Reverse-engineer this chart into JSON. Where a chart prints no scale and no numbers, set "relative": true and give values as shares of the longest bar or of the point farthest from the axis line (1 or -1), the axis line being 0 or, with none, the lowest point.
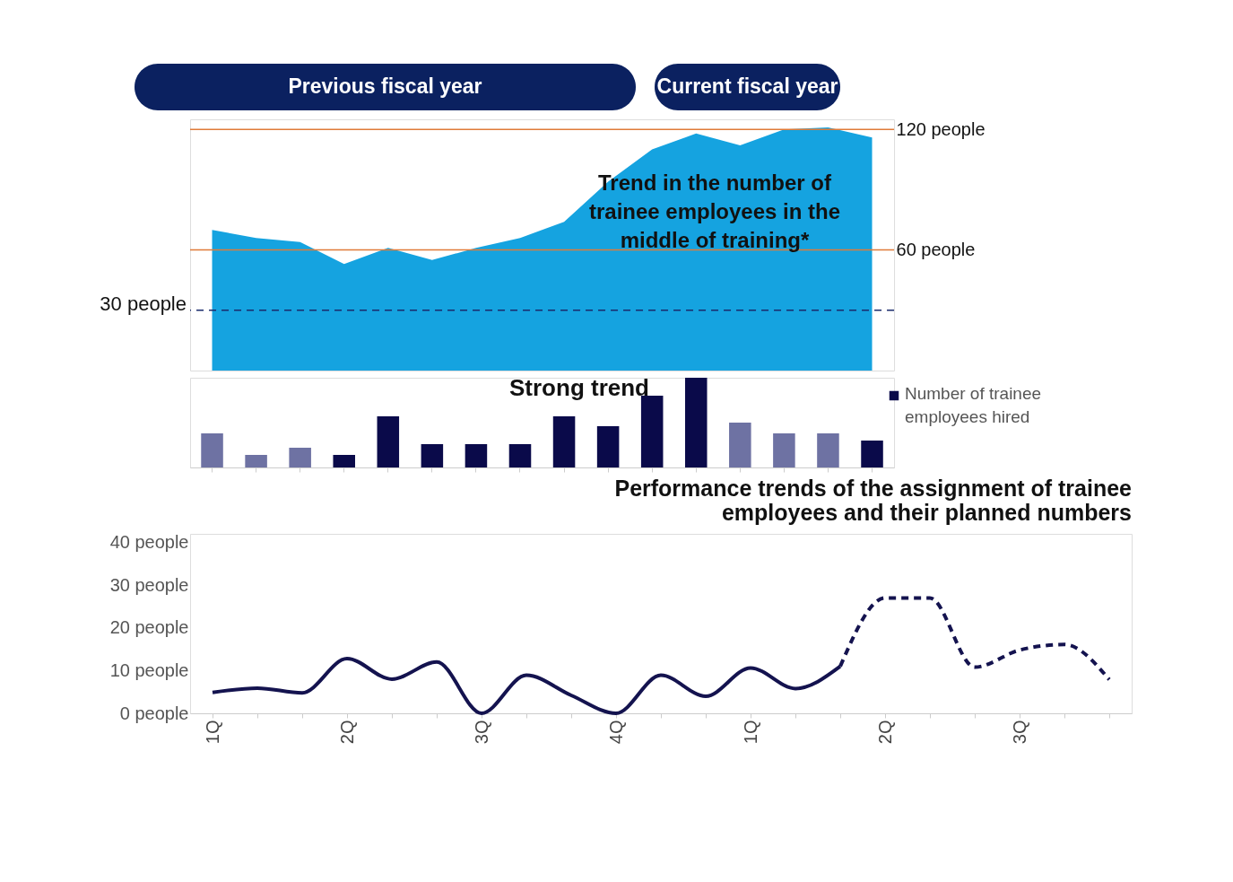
{
  "chart_data": [
    {
      "type": "area",
      "annotations": [
        "Previous fiscal year",
        "Current fiscal year",
        "Trend in the number of trainee employees in the middle of training*"
      ],
      "categories": [
        null,
        null,
        null,
        null,
        null,
        null,
        null,
        null,
        null,
        null,
        null,
        null,
        null,
        null,
        null,
        null
      ],
      "values": [
        70,
        66,
        64,
        53,
        61,
        55,
        61,
        66,
        74,
        94,
        110,
        118,
        112,
        120,
        121,
        116
      ],
      "color": "#15a3e0",
      "ylim": [
        0,
        125
      ],
      "yticks": [
        {
          "value": 60,
          "label": "60 people"
        },
        {
          "value": 120,
          "label": "120 people"
        }
      ],
      "tick_labels": "y",
      "grid": false,
      "ref_lines": [
        {
          "axis": "y",
          "value": 120,
          "color": "#e07b39",
          "line_style": "solid"
        },
        {
          "axis": "y",
          "value": 60,
          "color": "#e07b39",
          "line_style": "solid"
        },
        {
          "axis": "y",
          "value": 30,
          "label": "30 people",
          "color": "#1a2a6c",
          "line_style": "dashed"
        }
      ]
    },
    {
      "type": "bar",
      "relative": true,
      "annotations": [
        "Strong trend"
      ],
      "legend": "right",
      "tick_labels": false,
      "categories": [
        null,
        null,
        null,
        null,
        null,
        null,
        null,
        null,
        null,
        null,
        null,
        null,
        null,
        null,
        null,
        null
      ],
      "series": [
        {
          "name": "Number of trainee employees hired",
          "color": "#0a0a4a",
          "colors": [
            "#6e72a3",
            "#6e72a3",
            "#6e72a3",
            "#0a0a4a",
            "#0a0a4a",
            "#0a0a4a",
            "#0a0a4a",
            "#0a0a4a",
            "#0a0a4a",
            "#0a0a4a",
            "#0a0a4a",
            "#0a0a4a",
            "#6e72a3",
            "#6e72a3",
            "#6e72a3",
            "#0a0a4a"
          ],
          "values": [
            0.38,
            0.14,
            0.22,
            0.14,
            0.57,
            0.26,
            0.26,
            0.26,
            0.57,
            0.46,
            0.8,
            1,
            0.5,
            0.38,
            0.38,
            0.3
          ]
        }
      ]
    },
    {
      "type": "line",
      "title": "Performance trends of the assignment of trainee employees and their planned numbers",
      "marker": "none",
      "grid": false,
      "categories": [
        "1Q",
        null,
        null,
        "2Q",
        null,
        null,
        "3Q",
        null,
        null,
        "4Q",
        null,
        null,
        "1Q",
        null,
        null,
        "2Q",
        null,
        null,
        "3Q",
        null,
        null
      ],
      "series": [
        {
          "color": "#14134f",
          "line_style": "solid",
          "values": [
            4.9,
            5.9,
            4.8,
            12.8,
            8.0,
            12.0,
            0,
            8.9,
            4.2,
            0,
            8.9,
            4.0,
            10.6,
            5.8,
            11.0,
            null,
            null,
            null,
            null,
            null,
            null
          ]
        },
        {
          "color": "#14134f",
          "line_style": "dashed",
          "values": [
            null,
            null,
            null,
            null,
            null,
            null,
            null,
            null,
            null,
            null,
            null,
            null,
            null,
            null,
            11.0,
            27,
            27,
            10.8,
            14.8,
            16.1,
            7.9
          ]
        }
      ],
      "ylim": [
        0,
        42
      ],
      "yticks": [
        {
          "value": 0,
          "label": "0 people"
        },
        {
          "value": 10,
          "label": "10 people"
        },
        {
          "value": 20,
          "label": "20 people"
        },
        {
          "value": 30,
          "label": "30 people"
        },
        {
          "value": 40,
          "label": "40 people"
        }
      ]
    }
  ]
}
